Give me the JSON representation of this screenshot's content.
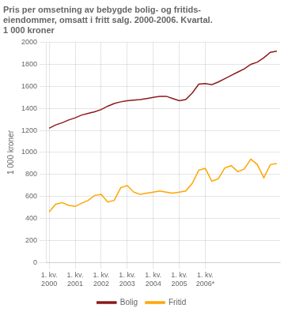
{
  "chart_data": {
    "type": "line",
    "title": "Pris per omsetning av bebygde bolig- og fritids-\neiendommer, omsatt i fritt salg. 2000-2006. Kvartal.\n1 000 kroner",
    "ylabel": "1 000 kroner",
    "categories": [
      "1. kv.\n2000",
      null,
      null,
      null,
      "1. kv.\n2001",
      null,
      null,
      null,
      "1. kv.\n2002",
      null,
      null,
      null,
      "1. kv.\n2003",
      null,
      null,
      null,
      "1. kv.\n2004",
      null,
      null,
      null,
      "1. kv.\n2005",
      null,
      null,
      null,
      "1. kv.\n2006*",
      null,
      null,
      null,
      null,
      null,
      null,
      null,
      null,
      null,
      null,
      null
    ],
    "series": [
      {
        "name": "Bolig",
        "color": "#8B1A1A",
        "values": [
          1220,
          1250,
          1270,
          1295,
          1315,
          1340,
          1355,
          1370,
          1390,
          1420,
          1445,
          1460,
          1470,
          1475,
          1480,
          1490,
          1500,
          1510,
          1510,
          1490,
          1470,
          1480,
          1540,
          1620,
          1625,
          1615,
          1640,
          1670,
          1700,
          1730,
          1760,
          1800,
          1820,
          1860,
          1910,
          1920
        ]
      },
      {
        "name": "Fritid",
        "color": "#FFA500",
        "values": [
          460,
          530,
          545,
          520,
          510,
          540,
          565,
          610,
          620,
          550,
          565,
          680,
          700,
          640,
          620,
          630,
          640,
          650,
          640,
          630,
          640,
          650,
          720,
          840,
          855,
          740,
          760,
          860,
          880,
          825,
          850,
          940,
          890,
          770,
          890,
          900
        ]
      }
    ],
    "ylim": [
      0,
      2000
    ],
    "yticks": [
      0,
      200,
      400,
      600,
      800,
      1000,
      1200,
      1400,
      1600,
      1800,
      2000
    ],
    "grid": true,
    "legend": "bottom"
  }
}
